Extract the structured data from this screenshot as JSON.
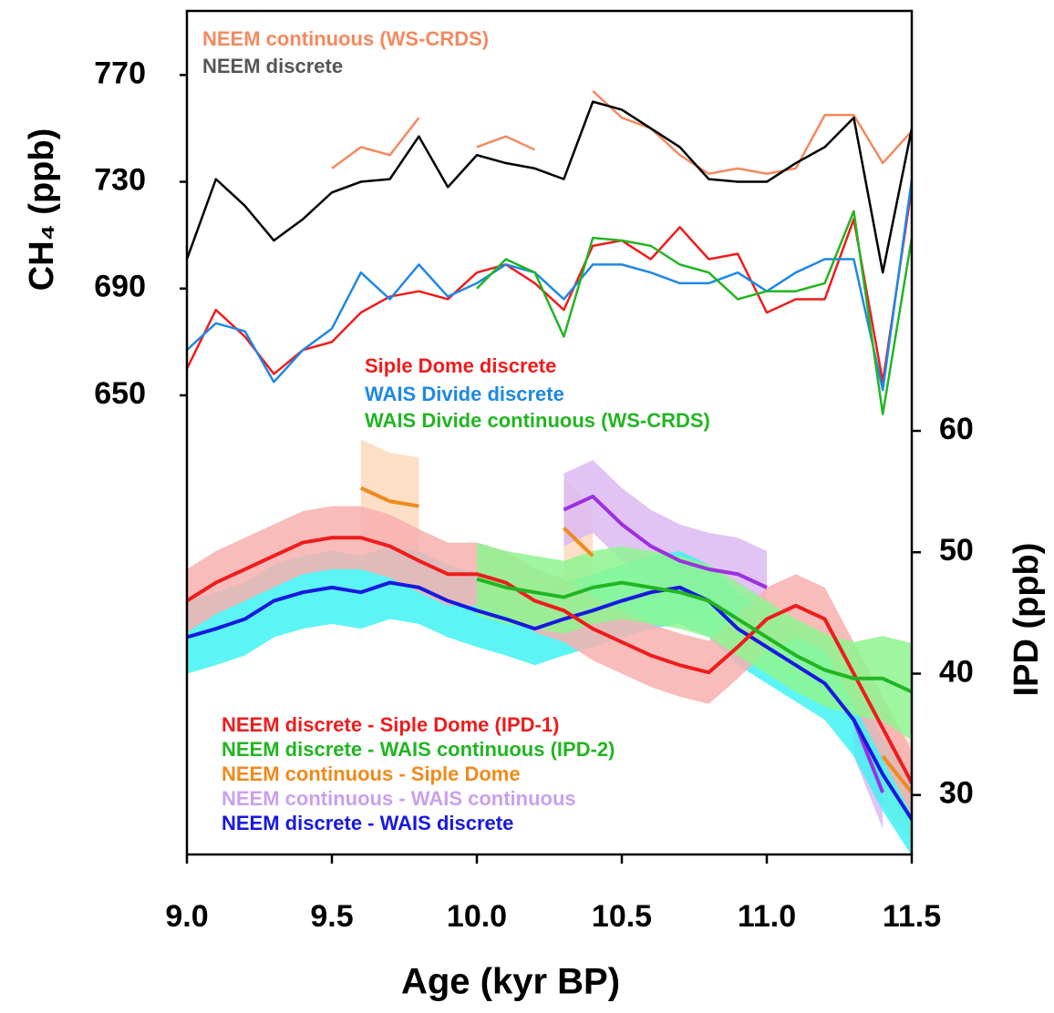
{
  "chart_data": {
    "type": "line",
    "x_label": "Age (kyr BP)",
    "y_label": "CH₄ (ppb)",
    "y2_label": "IPD (ppb)",
    "x": [
      9.0,
      9.1,
      9.2,
      9.3,
      9.4,
      9.5,
      9.6,
      9.7,
      9.8,
      9.9,
      10.0,
      10.1,
      10.2,
      10.3,
      10.4,
      10.5,
      10.6,
      10.7,
      10.8,
      10.9,
      11.0,
      11.1,
      11.2,
      11.3,
      11.4,
      11.5
    ],
    "xlim": [
      9.0,
      11.5
    ],
    "xticks": [
      {
        "value": 9.0,
        "label": "9.0"
      },
      9.5,
      {
        "value": 10.0,
        "label": "10.0"
      },
      10.5,
      {
        "value": 11.0,
        "label": "11.0"
      },
      11.5
    ],
    "ylim": [
      478,
      794
    ],
    "yticks": [
      650,
      690,
      730,
      770
    ],
    "y2lim": [
      25.1,
      94.6
    ],
    "y2ticks": [
      30,
      40,
      50,
      60
    ],
    "series": [
      {
        "name": "NEEM continuous (WS-CRDS)",
        "color": "#f4895f",
        "axis": "y",
        "values": [
          null,
          null,
          null,
          null,
          null,
          735,
          743,
          740,
          754,
          null,
          743,
          747,
          742,
          null,
          764,
          754,
          750,
          740,
          733,
          735,
          733,
          735,
          755,
          755,
          737,
          749
        ]
      },
      {
        "name": "NEEM discrete",
        "color": "#000000",
        "axis": "y",
        "values": [
          701,
          731,
          721,
          708,
          716,
          726,
          730,
          731,
          747,
          728,
          740,
          737,
          735,
          731,
          760,
          757,
          750,
          743,
          731,
          730,
          730,
          737,
          743,
          754,
          696,
          750
        ]
      },
      {
        "name": "Siple Dome discrete",
        "color": "#ee1c1c",
        "axis": "y",
        "values": [
          660,
          682,
          672,
          658,
          667,
          670,
          681,
          687,
          689,
          686,
          696,
          699,
          692,
          682,
          706,
          708,
          701,
          713,
          701,
          703,
          681,
          686,
          686,
          716,
          655,
          728
        ]
      },
      {
        "name": "WAIS Divide discrete",
        "color": "#1e88e5",
        "axis": "y",
        "values": [
          667,
          677,
          674,
          655,
          667,
          675,
          696,
          686,
          699,
          687,
          692,
          699,
          696,
          686,
          699,
          699,
          696,
          692,
          692,
          696,
          689,
          696,
          701,
          701,
          652,
          731
        ]
      },
      {
        "name": "WAIS Divide continuous (WS-CRDS)",
        "color": "#22b522",
        "axis": "y",
        "values": [
          null,
          null,
          null,
          null,
          null,
          null,
          null,
          null,
          null,
          null,
          690,
          701,
          696,
          672,
          709,
          708,
          706,
          699,
          696,
          686,
          689,
          689,
          692,
          719,
          643,
          709
        ]
      },
      {
        "name": "NEEM continuous - Siple Dome",
        "color": "#f08a1c",
        "band": "#fbd9bc",
        "axis": "y2",
        "values": [
          null,
          null,
          null,
          null,
          null,
          null,
          55.3,
          54.2,
          53.8,
          null,
          null,
          null,
          null,
          52.0,
          49.7,
          null,
          null,
          null,
          null,
          null,
          null,
          null,
          null,
          null,
          33.2,
          30.2
        ],
        "lower": [
          null,
          null,
          null,
          null,
          null,
          null,
          51.3,
          50.2,
          49.8,
          null,
          null,
          null,
          null,
          48.0,
          45.7,
          null,
          null,
          null,
          null,
          null,
          null,
          null,
          null,
          null,
          29.2,
          26.2
        ],
        "upper": [
          null,
          null,
          null,
          null,
          null,
          null,
          59.3,
          58.2,
          57.8,
          null,
          null,
          null,
          null,
          56.0,
          53.7,
          null,
          null,
          null,
          null,
          null,
          null,
          null,
          null,
          null,
          37.2,
          34.2
        ]
      },
      {
        "name": "NEEM continuous - WAIS continuous",
        "color": "#9b30e0",
        "band": "#dcbaf2",
        "axis": "y2",
        "values": [
          null,
          null,
          null,
          null,
          null,
          null,
          null,
          null,
          null,
          null,
          null,
          null,
          null,
          53.5,
          54.6,
          52.3,
          50.5,
          49.3,
          48.6,
          48.2,
          47.1,
          null,
          null,
          36.2,
          30.2,
          null
        ],
        "lower": [
          null,
          null,
          null,
          null,
          null,
          null,
          null,
          null,
          null,
          null,
          null,
          null,
          null,
          50.5,
          51.6,
          49.3,
          47.5,
          46.3,
          45.6,
          45.2,
          44.1,
          null,
          null,
          33.2,
          27.2,
          null
        ],
        "upper": [
          null,
          null,
          null,
          null,
          null,
          null,
          null,
          null,
          null,
          null,
          null,
          null,
          null,
          56.5,
          57.6,
          55.3,
          53.5,
          52.3,
          51.6,
          51.2,
          50.1,
          null,
          null,
          39.2,
          33.2,
          null
        ]
      },
      {
        "name": "NEEM discrete - WAIS discrete",
        "color": "#1818e0",
        "band": "#40f2f2",
        "axis": "y2",
        "values": [
          43.0,
          43.7,
          44.5,
          46.0,
          46.7,
          47.1,
          46.7,
          47.5,
          47.1,
          46.0,
          45.2,
          44.5,
          43.7,
          44.5,
          45.2,
          46.0,
          46.7,
          47.1,
          46.0,
          43.7,
          42.2,
          40.7,
          39.2,
          36.2,
          31.7,
          28.0
        ],
        "lower": [
          40.0,
          40.7,
          41.5,
          43.0,
          43.7,
          44.1,
          43.7,
          44.5,
          44.1,
          43.0,
          42.2,
          41.5,
          40.7,
          41.5,
          42.2,
          43.0,
          43.7,
          44.1,
          43.0,
          40.7,
          39.2,
          37.7,
          36.2,
          33.2,
          28.7,
          25.0
        ],
        "upper": [
          46.0,
          46.7,
          47.5,
          49.0,
          49.7,
          50.1,
          49.7,
          50.5,
          50.1,
          49.0,
          48.2,
          47.5,
          46.7,
          47.5,
          48.2,
          49.0,
          49.7,
          50.1,
          49.0,
          46.7,
          45.2,
          43.7,
          42.2,
          39.2,
          34.7,
          31.0
        ]
      },
      {
        "name": "NEEM discrete - Siple Dome (IPD-1)",
        "color": "#ee1c1c",
        "band": "#f7b0ae",
        "axis": "y2",
        "values": [
          46.0,
          47.5,
          48.6,
          49.7,
          50.8,
          51.2,
          51.2,
          50.5,
          49.3,
          48.2,
          48.2,
          47.5,
          46.0,
          45.2,
          43.7,
          42.6,
          41.5,
          40.7,
          40.1,
          42.2,
          44.5,
          45.6,
          44.5,
          40.0,
          35.5,
          31.0
        ],
        "lower": [
          43.4,
          44.9,
          46.0,
          47.1,
          48.2,
          48.6,
          48.6,
          47.9,
          46.7,
          45.6,
          45.6,
          44.9,
          43.4,
          42.6,
          41.1,
          40.0,
          38.9,
          38.1,
          37.5,
          39.6,
          41.9,
          43.0,
          41.9,
          37.4,
          32.9,
          28.4
        ],
        "upper": [
          48.6,
          50.1,
          51.2,
          52.3,
          53.4,
          53.8,
          53.8,
          53.1,
          51.9,
          50.8,
          50.8,
          50.1,
          48.6,
          47.8,
          46.3,
          45.2,
          44.1,
          43.3,
          42.7,
          44.8,
          47.1,
          48.2,
          47.1,
          42.6,
          38.1,
          33.6
        ]
      },
      {
        "name": "NEEM discrete - WAIS continuous (IPD-2)",
        "color": "#22b522",
        "band": "#8ff58f",
        "axis": "y2",
        "values": [
          null,
          null,
          null,
          null,
          null,
          null,
          null,
          null,
          null,
          null,
          47.8,
          47.1,
          46.7,
          46.3,
          47.1,
          47.5,
          47.1,
          46.7,
          46.0,
          44.5,
          43.0,
          41.5,
          40.3,
          39.6,
          39.6,
          38.5
        ],
        "lower": [
          null,
          null,
          null,
          null,
          null,
          null,
          null,
          null,
          null,
          null,
          44.8,
          44.1,
          43.7,
          43.3,
          44.1,
          44.5,
          44.1,
          43.7,
          43.0,
          41.5,
          40.0,
          38.5,
          37.3,
          36.6,
          36.1,
          34.5
        ],
        "upper": [
          null,
          null,
          null,
          null,
          null,
          null,
          null,
          null,
          null,
          null,
          50.8,
          50.1,
          49.7,
          49.3,
          50.1,
          50.5,
          50.1,
          49.7,
          49.0,
          47.5,
          46.0,
          44.5,
          43.3,
          42.6,
          43.1,
          42.5
        ]
      }
    ]
  }
}
